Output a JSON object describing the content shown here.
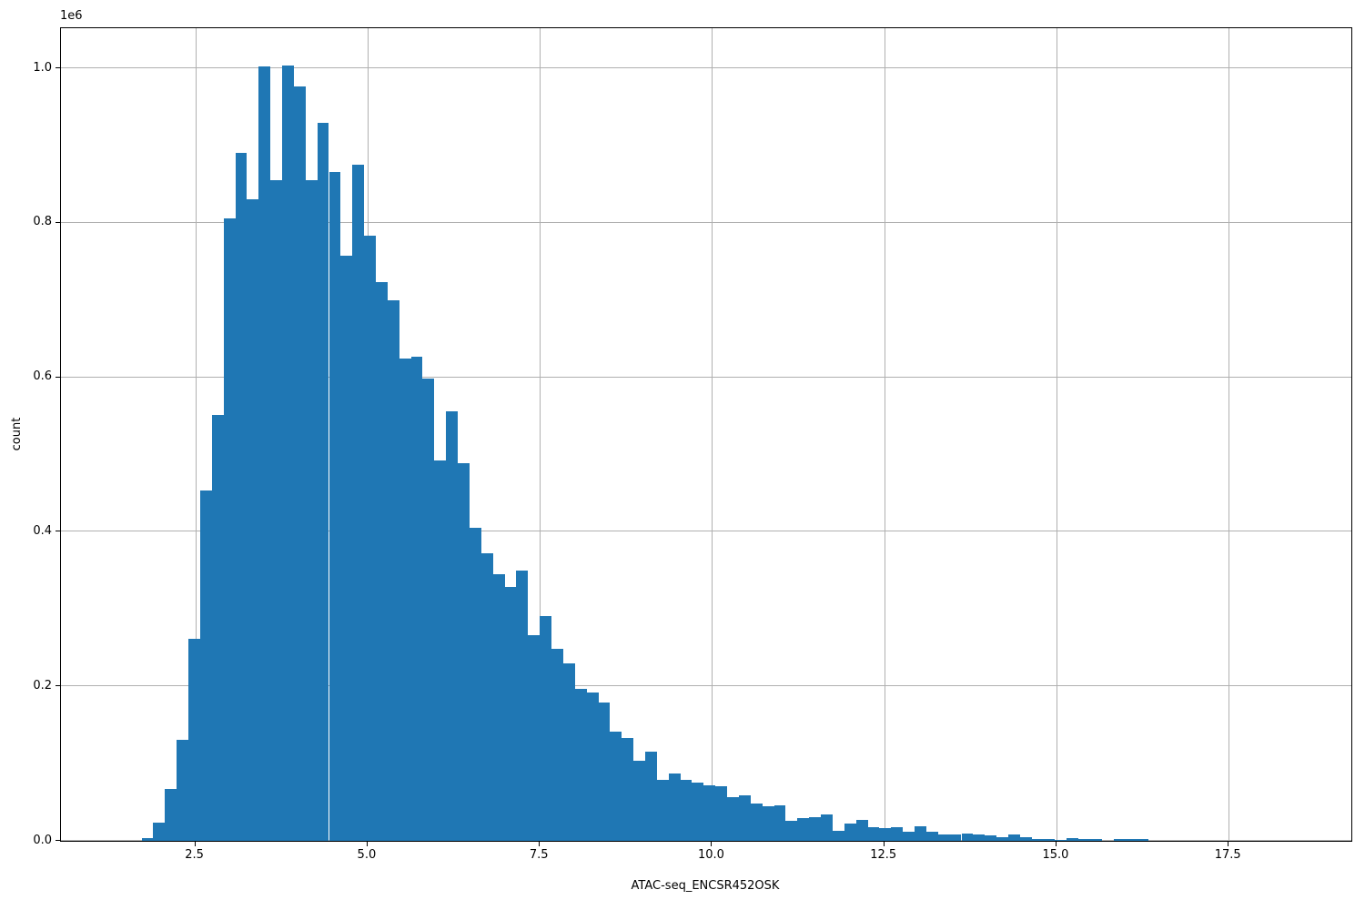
{
  "figure": {
    "background": "#ffffff"
  },
  "chart_data": {
    "type": "bar",
    "subtype": "histogram",
    "title": "",
    "xlabel": "ATAC-seq_ENCSR452OSK",
    "ylabel": "count",
    "offset_text": "1e6",
    "grid": true,
    "legend_position": "none",
    "bar_color": "#1f77b4",
    "grid_color": "#b0b0b0",
    "axis_color": "#000000",
    "xlim": [
      0.55,
      19.28
    ],
    "ylim": [
      0,
      1052000
    ],
    "x_ticks": [
      2.5,
      5.0,
      7.5,
      10.0,
      12.5,
      15.0,
      17.5
    ],
    "x_tick_labels": [
      "2.5",
      "5.0",
      "7.5",
      "10.0",
      "12.5",
      "15.0",
      "17.5"
    ],
    "y_ticks": [
      0,
      200000,
      400000,
      600000,
      800000,
      1000000
    ],
    "y_tick_labels": [
      "0.0",
      "0.2",
      "0.4",
      "0.6",
      "0.8",
      "1.0"
    ],
    "bins": {
      "start": 1.72,
      "width": 0.17,
      "count": 86
    },
    "counts": [
      4000,
      24000,
      67000,
      131000,
      262000,
      453000,
      551000,
      806000,
      891000,
      830000,
      1003000,
      855000,
      1004000,
      977000,
      855000,
      929000,
      866000,
      757000,
      875000,
      783000,
      723000,
      700000,
      624000,
      627000,
      599000,
      492000,
      556000,
      489000,
      405000,
      372000,
      345000,
      329000,
      350000,
      266000,
      291000,
      249000,
      230000,
      197000,
      192000,
      179000,
      141000,
      133000,
      104000,
      115000,
      79000,
      87000,
      79000,
      75000,
      72000,
      71000,
      57000,
      59000,
      48000,
      45000,
      46000,
      26000,
      29000,
      31000,
      34000,
      13000,
      22000,
      27000,
      18000,
      16500,
      18000,
      12000,
      19000,
      12000,
      8000,
      8000,
      10000,
      8000,
      7500,
      4700,
      7900,
      4500,
      2800,
      2000,
      800,
      3500,
      1800,
      1800,
      500,
      2800,
      2800,
      2800
    ]
  }
}
